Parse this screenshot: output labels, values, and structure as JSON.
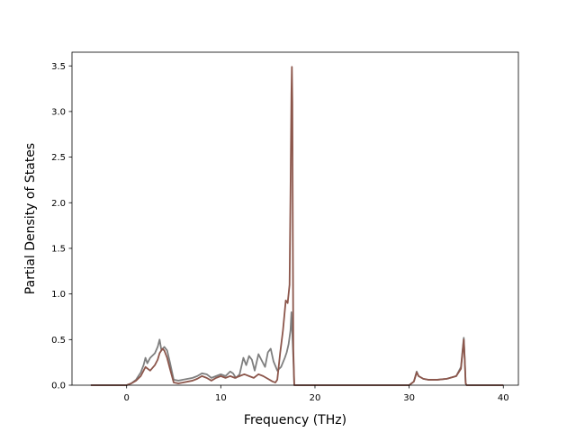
{
  "chart_data": {
    "type": "line",
    "title": "",
    "xlabel": "Frequency (THz)",
    "ylabel": "Partial Density of States",
    "xlim": [
      -5.8,
      41.6
    ],
    "ylim": [
      0,
      3.65
    ],
    "xticks": [
      0,
      10,
      20,
      30,
      40
    ],
    "yticks": [
      0.0,
      0.5,
      1.0,
      1.5,
      2.0,
      2.5,
      3.0,
      3.5
    ],
    "xtick_labels": [
      "0",
      "10",
      "20",
      "30",
      "40"
    ],
    "ytick_labels": [
      "0.0",
      "0.5",
      "1.0",
      "1.5",
      "2.0",
      "2.5",
      "3.0",
      "3.5"
    ],
    "grid": false,
    "legend": "none",
    "series": [
      {
        "color": "#7f7f7f",
        "x": [
          -3.8,
          0.0,
          0.5,
          1.0,
          1.5,
          1.8,
          2.0,
          2.2,
          2.5,
          3.0,
          3.3,
          3.5,
          3.7,
          4.0,
          4.3,
          4.6,
          5.0,
          5.5,
          6.0,
          7.0,
          7.5,
          8.0,
          8.5,
          9.0,
          9.5,
          10.0,
          10.5,
          11.0,
          11.3,
          11.6,
          12.0,
          12.4,
          12.7,
          13.0,
          13.3,
          13.6,
          14.0,
          14.3,
          14.7,
          15.0,
          15.3,
          15.6,
          16.0,
          16.4,
          16.8,
          17.0,
          17.2,
          17.4,
          17.5,
          17.6,
          17.7,
          17.8,
          18.0,
          25.0,
          30.0,
          30.5,
          30.8,
          31.0,
          31.5,
          32.0,
          33.0,
          34.0,
          35.0,
          35.5,
          35.8,
          35.9,
          36.0,
          36.1,
          36.2,
          40.0
        ],
        "values": [
          0,
          0.0,
          0.02,
          0.06,
          0.14,
          0.22,
          0.3,
          0.24,
          0.3,
          0.35,
          0.42,
          0.5,
          0.38,
          0.42,
          0.38,
          0.25,
          0.06,
          0.05,
          0.06,
          0.08,
          0.1,
          0.13,
          0.12,
          0.08,
          0.1,
          0.12,
          0.1,
          0.15,
          0.13,
          0.08,
          0.12,
          0.3,
          0.22,
          0.32,
          0.28,
          0.16,
          0.34,
          0.28,
          0.2,
          0.36,
          0.4,
          0.26,
          0.16,
          0.2,
          0.3,
          0.36,
          0.45,
          0.6,
          0.8,
          0.55,
          0.3,
          0.0,
          0.0,
          0.0,
          0.0,
          0.04,
          0.15,
          0.1,
          0.07,
          0.06,
          0.06,
          0.07,
          0.1,
          0.2,
          0.52,
          0.3,
          0.02,
          0.0,
          0.0,
          0
        ]
      },
      {
        "color": "#8c564b",
        "x": [
          -3.8,
          0.0,
          0.5,
          1.0,
          1.5,
          1.8,
          2.0,
          2.5,
          3.0,
          3.3,
          3.5,
          3.8,
          4.0,
          4.3,
          4.6,
          5.0,
          5.5,
          6.0,
          7.0,
          7.5,
          8.0,
          8.5,
          9.0,
          9.5,
          10.0,
          10.5,
          11.0,
          11.5,
          12.0,
          12.5,
          13.0,
          13.5,
          14.0,
          14.5,
          15.0,
          15.5,
          15.8,
          16.0,
          16.3,
          16.6,
          16.9,
          17.1,
          17.3,
          17.4,
          17.5,
          17.55,
          17.6,
          17.65,
          17.7,
          17.8,
          18.0,
          25.0,
          30.0,
          30.5,
          30.8,
          31.0,
          31.5,
          32.0,
          33.0,
          34.0,
          35.0,
          35.5,
          35.8,
          35.9,
          36.0,
          36.1,
          36.2,
          40.0
        ],
        "values": [
          0,
          0.0,
          0.02,
          0.05,
          0.1,
          0.16,
          0.2,
          0.16,
          0.22,
          0.28,
          0.35,
          0.4,
          0.38,
          0.3,
          0.18,
          0.03,
          0.02,
          0.03,
          0.05,
          0.07,
          0.1,
          0.08,
          0.05,
          0.08,
          0.1,
          0.08,
          0.1,
          0.08,
          0.1,
          0.12,
          0.1,
          0.08,
          0.12,
          0.1,
          0.07,
          0.04,
          0.03,
          0.06,
          0.35,
          0.6,
          0.93,
          0.9,
          1.1,
          2.1,
          3.2,
          3.49,
          3.1,
          1.6,
          0.4,
          0.0,
          0.0,
          0.0,
          0.0,
          0.04,
          0.14,
          0.1,
          0.07,
          0.06,
          0.06,
          0.07,
          0.1,
          0.18,
          0.5,
          0.28,
          0.02,
          0.0,
          0.0,
          0
        ]
      }
    ]
  }
}
